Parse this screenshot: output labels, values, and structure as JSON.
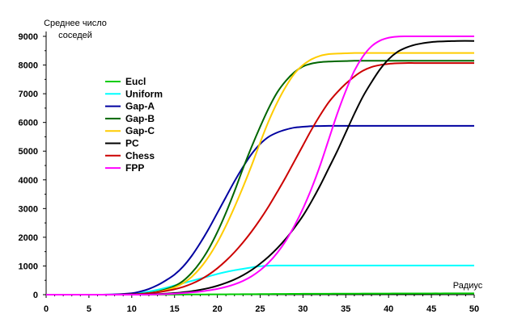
{
  "chart_data": {
    "type": "line",
    "ylabel_lines": [
      "Среднее число",
      "соседей"
    ],
    "xlabel": "Радиус",
    "xlim": [
      0,
      50
    ],
    "ylim": [
      0,
      9000
    ],
    "x_ticks": [
      0,
      5,
      10,
      15,
      20,
      25,
      30,
      35,
      40,
      45,
      50
    ],
    "y_ticks": [
      0,
      1000,
      2000,
      3000,
      4000,
      5000,
      6000,
      7000,
      8000,
      9000
    ],
    "grid": false,
    "legend_position": "left",
    "x": [
      0,
      2,
      4,
      6,
      8,
      10,
      11,
      12,
      13,
      14,
      15,
      16,
      17,
      18,
      19,
      20,
      21,
      22,
      23,
      24,
      25,
      26,
      27,
      28,
      29,
      30,
      31,
      32,
      33,
      34,
      35,
      36,
      37,
      38,
      39,
      40,
      41,
      42,
      43,
      44,
      45,
      46,
      47,
      48,
      50
    ],
    "series": [
      {
        "name": "Eucl",
        "color": "#00cc00",
        "values": [
          0,
          0,
          0,
          0,
          0,
          1,
          1,
          2,
          2,
          3,
          4,
          5,
          6,
          7,
          9,
          10,
          12,
          14,
          16,
          18,
          20,
          22,
          24,
          26,
          28,
          30,
          31,
          32,
          33,
          34,
          35,
          36,
          37,
          38,
          39,
          40,
          41,
          42,
          43,
          43,
          44,
          44,
          45,
          45,
          45
        ]
      },
      {
        "name": "Uniform",
        "color": "#00ffff",
        "values": [
          0,
          0,
          0,
          0,
          5,
          30,
          60,
          110,
          170,
          240,
          320,
          400,
          480,
          560,
          640,
          720,
          790,
          850,
          900,
          950,
          990,
          1010,
          1015,
          1015,
          1015,
          1015,
          1015,
          1015,
          1015,
          1015,
          1015,
          1015,
          1015,
          1015,
          1015,
          1015,
          1015,
          1015,
          1015,
          1015,
          1015,
          1015,
          1015,
          1015,
          1015
        ]
      },
      {
        "name": "Gap-A",
        "color": "#0000a0",
        "values": [
          0,
          0,
          0,
          0,
          10,
          50,
          110,
          200,
          330,
          500,
          700,
          980,
          1350,
          1800,
          2300,
          2850,
          3400,
          3950,
          4450,
          4900,
          5250,
          5500,
          5650,
          5750,
          5820,
          5850,
          5870,
          5875,
          5880,
          5880,
          5880,
          5880,
          5880,
          5880,
          5880,
          5880,
          5880,
          5880,
          5880,
          5880,
          5880,
          5880,
          5880,
          5880,
          5880
        ]
      },
      {
        "name": "Gap-B",
        "color": "#006600",
        "values": [
          0,
          0,
          0,
          0,
          0,
          10,
          30,
          60,
          110,
          190,
          300,
          480,
          760,
          1130,
          1600,
          2180,
          2850,
          3600,
          4400,
          5150,
          5850,
          6500,
          7050,
          7450,
          7750,
          7950,
          8050,
          8100,
          8120,
          8130,
          8140,
          8150,
          8150,
          8150,
          8150,
          8150,
          8150,
          8150,
          8150,
          8150,
          8150,
          8150,
          8150,
          8150,
          8150
        ]
      },
      {
        "name": "Gap-C",
        "color": "#ffcc00",
        "values": [
          0,
          0,
          0,
          0,
          0,
          5,
          20,
          50,
          90,
          160,
          250,
          400,
          620,
          930,
          1330,
          1820,
          2400,
          3050,
          3750,
          4500,
          5300,
          6050,
          6700,
          7250,
          7700,
          8000,
          8200,
          8320,
          8380,
          8400,
          8410,
          8420,
          8420,
          8420,
          8420,
          8420,
          8420,
          8420,
          8420,
          8420,
          8420,
          8420,
          8420,
          8420,
          8420
        ]
      },
      {
        "name": "PC",
        "color": "#000000",
        "values": [
          0,
          0,
          0,
          0,
          0,
          0,
          5,
          10,
          20,
          35,
          55,
          85,
          120,
          170,
          230,
          310,
          410,
          530,
          680,
          860,
          1080,
          1330,
          1620,
          1950,
          2330,
          2750,
          3250,
          3800,
          4400,
          5000,
          5650,
          6300,
          6900,
          7400,
          7850,
          8200,
          8450,
          8600,
          8700,
          8760,
          8800,
          8820,
          8830,
          8840,
          8840
        ]
      },
      {
        "name": "Chess",
        "color": "#cc0000",
        "values": [
          0,
          0,
          0,
          0,
          0,
          10,
          25,
          50,
          80,
          130,
          190,
          270,
          380,
          520,
          700,
          920,
          1180,
          1480,
          1820,
          2200,
          2620,
          3080,
          3580,
          4100,
          4650,
          5200,
          5750,
          6250,
          6700,
          7050,
          7350,
          7600,
          7800,
          7930,
          8000,
          8040,
          8060,
          8070,
          8070,
          8070,
          8070,
          8070,
          8070,
          8070,
          8070
        ]
      },
      {
        "name": "FPP",
        "color": "#ff00ff",
        "values": [
          0,
          0,
          0,
          0,
          0,
          0,
          0,
          5,
          10,
          20,
          35,
          55,
          80,
          110,
          150,
          200,
          270,
          360,
          480,
          640,
          850,
          1120,
          1460,
          1880,
          2400,
          3000,
          3700,
          4500,
          5400,
          6300,
          7100,
          7800,
          8300,
          8650,
          8850,
          8950,
          8990,
          9000,
          9000,
          9000,
          9000,
          9000,
          9000,
          9000,
          9000
        ]
      }
    ]
  }
}
